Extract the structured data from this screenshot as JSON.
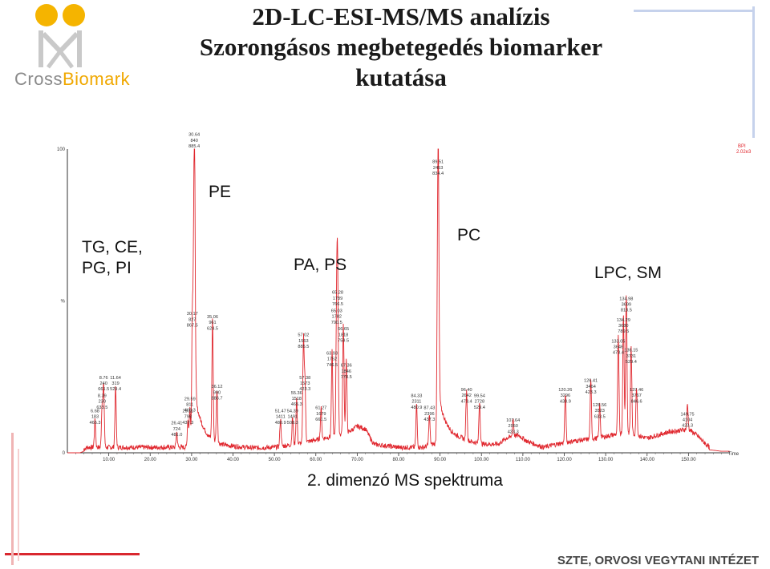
{
  "header": {
    "title_lines": [
      "2D-LC-ESI-MS/MS analízis",
      "Szorongásos megbetegedés biomarker",
      "kutatása"
    ]
  },
  "logo": {
    "text_a": "Cross",
    "text_b": "Biomark"
  },
  "regions": {
    "pe": "PE",
    "tg_line1": "TG, CE,",
    "tg_line2": "PG, PI",
    "pa_ps": "PA, PS",
    "pc": "PC",
    "lpc_sm": "LPC, SM"
  },
  "xaxis_caption": "2. dimenzó MS spektruma",
  "footer": "SZTE, ORVOSI VEGYTANI INTÉZET",
  "colors": {
    "trace": "#e0272e",
    "accent_blue": "#b9c7e6",
    "accent_red": "#d9282f",
    "logo_orange": "#f5b400"
  },
  "chart_data": {
    "type": "line",
    "xlim": [
      0,
      160
    ],
    "ylim": [
      0,
      100
    ],
    "yticks": [
      {
        "v": 0,
        "label": "0"
      },
      {
        "v": 50,
        "label": "%"
      },
      {
        "v": 100,
        "label": "100"
      }
    ],
    "xticks": [
      {
        "v": 10,
        "label": "10.00"
      },
      {
        "v": 20,
        "label": "20.00"
      },
      {
        "v": 30,
        "label": "30.00"
      },
      {
        "v": 40,
        "label": "40.00"
      },
      {
        "v": 50,
        "label": "50.00"
      },
      {
        "v": 60,
        "label": "60.00"
      },
      {
        "v": 70,
        "label": "70.00"
      },
      {
        "v": 80,
        "label": "80.00"
      },
      {
        "v": 90,
        "label": "90.00"
      },
      {
        "v": 100,
        "label": "100.00"
      },
      {
        "v": 110,
        "label": "110.00"
      },
      {
        "v": 120,
        "label": "120.00"
      },
      {
        "v": 130,
        "label": "130.00"
      },
      {
        "v": 140,
        "label": "140.00"
      },
      {
        "v": 150,
        "label": "150.00"
      }
    ],
    "x_unit": "Time",
    "legend": [
      "BPI",
      "2.02e3"
    ],
    "peaks": [
      {
        "x": 6.68,
        "y": 9,
        "labels": [
          "6.68",
          "183",
          "465.3"
        ]
      },
      {
        "x": 8.39,
        "y": 14,
        "labels": [
          "8.39",
          "230",
          "633.5"
        ]
      },
      {
        "x": 8.76,
        "y": 20,
        "labels": [
          "8.76",
          "240",
          "661.5"
        ]
      },
      {
        "x": 11.64,
        "y": 20,
        "labels": [
          "11.64",
          "319",
          "529.4"
        ]
      },
      {
        "x": 26.41,
        "y": 5,
        "labels": [
          "26.41",
          "724",
          "481.0"
        ]
      },
      {
        "x": 29.11,
        "y": 9,
        "labels": [
          "29.11",
          "798",
          "437.3"
        ]
      },
      {
        "x": 29.59,
        "y": 13,
        "labels": [
          "29.59",
          "811",
          "465.3"
        ]
      },
      {
        "x": 30.17,
        "y": 41,
        "labels": [
          "30.17",
          "827",
          "867.5"
        ]
      },
      {
        "x": 30.64,
        "y": 100,
        "labels": [
          "30.64",
          "840",
          "885.4"
        ]
      },
      {
        "x": 35.06,
        "y": 40,
        "labels": [
          "35.06",
          "961",
          "624.5"
        ]
      },
      {
        "x": 36.12,
        "y": 17,
        "labels": [
          "36.12",
          "990",
          "886.7"
        ]
      },
      {
        "x": 51.47,
        "y": 9,
        "labels": [
          "51.47",
          "1411",
          "480.9"
        ]
      },
      {
        "x": 54.39,
        "y": 9,
        "labels": [
          "54.39",
          "1491",
          "508.3"
        ]
      },
      {
        "x": 55.36,
        "y": 15,
        "labels": [
          "55.36",
          "1518",
          "465.3"
        ]
      },
      {
        "x": 57.02,
        "y": 34,
        "labels": [
          "57.02",
          "1563",
          "885.5"
        ]
      },
      {
        "x": 57.38,
        "y": 20,
        "labels": [
          "57.38",
          "1573",
          "423.3"
        ]
      },
      {
        "x": 61.27,
        "y": 10,
        "labels": [
          "61.27",
          "1679",
          "661.5"
        ]
      },
      {
        "x": 63.93,
        "y": 28,
        "labels": [
          "63.93",
          "1752",
          "746.5"
        ]
      },
      {
        "x": 65.03,
        "y": 42,
        "labels": [
          "65.03",
          "1782",
          "790.5"
        ]
      },
      {
        "x": 65.28,
        "y": 48,
        "labels": [
          "65.28",
          "1789",
          "766.5"
        ]
      },
      {
        "x": 66.65,
        "y": 36,
        "labels": [
          "66.65",
          "1818",
          "759.5"
        ]
      },
      {
        "x": 67.36,
        "y": 24,
        "labels": [
          "67.36",
          "1846",
          "778.5"
        ]
      },
      {
        "x": 84.33,
        "y": 14,
        "labels": [
          "84.33",
          "2311",
          "480.9"
        ]
      },
      {
        "x": 87.43,
        "y": 10,
        "labels": [
          "87.43",
          "2396",
          "437.3"
        ]
      },
      {
        "x": 89.51,
        "y": 91,
        "labels": [
          "89.51",
          "2453",
          "834.4"
        ]
      },
      {
        "x": 96.4,
        "y": 16,
        "labels": [
          "96.40",
          "2642",
          "473.4"
        ]
      },
      {
        "x": 99.54,
        "y": 14,
        "labels": [
          "99.54",
          "2728",
          "529.4"
        ]
      },
      {
        "x": 107.64,
        "y": 6,
        "labels": [
          "107.64",
          "2950",
          "423.3"
        ]
      },
      {
        "x": 120.26,
        "y": 16,
        "labels": [
          "120.26",
          "3296",
          "430.9"
        ]
      },
      {
        "x": 126.41,
        "y": 19,
        "labels": [
          "126.41",
          "3464",
          "423.3"
        ]
      },
      {
        "x": 128.56,
        "y": 11,
        "labels": [
          "128.56",
          "3523",
          "633.5"
        ]
      },
      {
        "x": 133.05,
        "y": 32,
        "labels": [
          "133.05",
          "3646",
          "473.4"
        ]
      },
      {
        "x": 134.29,
        "y": 39,
        "labels": [
          "134.29",
          "3680",
          "789.5"
        ]
      },
      {
        "x": 134.98,
        "y": 46,
        "labels": [
          "134.98",
          "3699",
          "818.5"
        ]
      },
      {
        "x": 136.15,
        "y": 29,
        "labels": [
          "136.15",
          "3731",
          "529.4"
        ]
      },
      {
        "x": 137.46,
        "y": 16,
        "labels": [
          "137.46",
          "3767",
          "846.6"
        ]
      },
      {
        "x": 149.75,
        "y": 8,
        "labels": [
          "149.75",
          "4104",
          "423.3"
        ]
      }
    ],
    "baseline": [
      [
        0,
        0
      ],
      [
        3,
        0
      ],
      [
        5,
        1
      ],
      [
        20,
        1
      ],
      [
        28,
        1
      ],
      [
        40,
        1.2
      ],
      [
        45,
        0.8
      ],
      [
        50,
        1
      ],
      [
        55,
        2
      ],
      [
        62,
        4
      ],
      [
        68,
        6
      ],
      [
        70,
        8
      ],
      [
        72,
        7
      ],
      [
        74,
        2
      ],
      [
        80,
        1
      ],
      [
        86,
        1
      ],
      [
        88,
        2
      ],
      [
        95,
        3
      ],
      [
        100,
        2
      ],
      [
        104,
        2
      ],
      [
        106,
        4
      ],
      [
        109,
        5
      ],
      [
        111,
        3
      ],
      [
        115,
        1
      ],
      [
        118,
        2
      ],
      [
        122,
        3
      ],
      [
        128,
        4
      ],
      [
        135,
        6
      ],
      [
        140,
        4
      ],
      [
        145,
        6
      ],
      [
        150,
        7
      ],
      [
        152,
        5
      ],
      [
        155,
        1
      ],
      [
        158,
        0.5
      ],
      [
        160,
        0.5
      ]
    ]
  }
}
